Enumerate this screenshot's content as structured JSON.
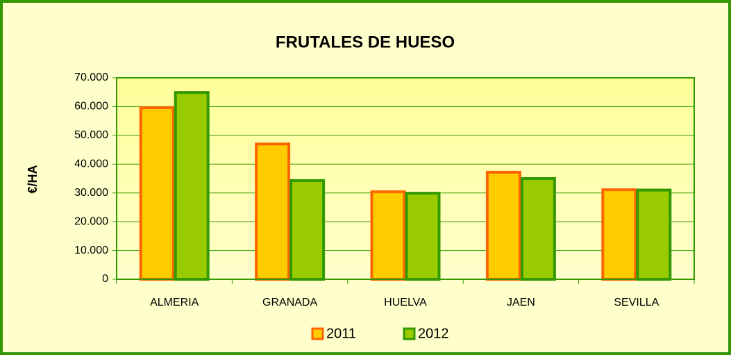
{
  "chart_data": {
    "type": "bar",
    "title": "FRUTALES DE HUESO",
    "ylabel": "€/HA",
    "categories": [
      "ALMERIA",
      "GRANADA",
      "HUELVA",
      "JAEN",
      "SEVILLA"
    ],
    "series": [
      {
        "name": "2011",
        "color": "#ffcc00",
        "edge": "#ff6600",
        "values": [
          59600,
          47000,
          30400,
          37200,
          31100
        ]
      },
      {
        "name": "2012",
        "color": "#99cc00",
        "edge": "#339900",
        "values": [
          64900,
          34300,
          29900,
          35000,
          31000
        ]
      }
    ],
    "ylim": [
      0,
      70000
    ],
    "yticks": [
      0,
      {
        "value": 10000,
        "label": "10.000"
      },
      {
        "value": 20000,
        "label": "20.000"
      },
      {
        "value": 30000,
        "label": "30.000"
      },
      {
        "value": 40000,
        "label": "40.000"
      },
      {
        "value": 50000,
        "label": "50.000"
      },
      {
        "value": 60000,
        "label": "60.000"
      },
      {
        "value": 70000,
        "label": "70.000"
      }
    ],
    "grid": true,
    "legend": "bottom"
  }
}
